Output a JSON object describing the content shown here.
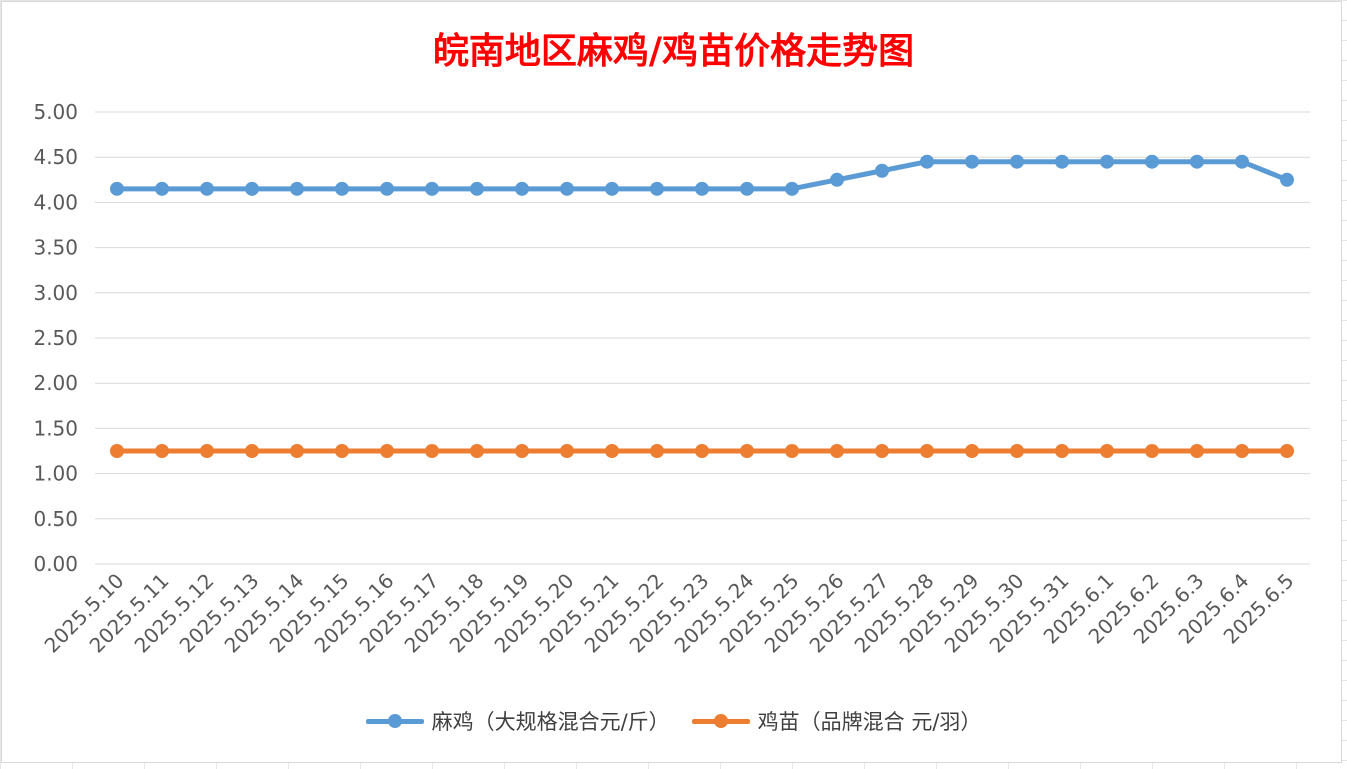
{
  "chart_data": {
    "type": "line",
    "title": "皖南地区麻鸡/鸡苗价格走势图",
    "categories": [
      "2025.5.10",
      "2025.5.11",
      "2025.5.12",
      "2025.5.13",
      "2025.5.14",
      "2025.5.15",
      "2025.5.16",
      "2025.5.17",
      "2025.5.18",
      "2025.5.19",
      "2025.5.20",
      "2025.5.21",
      "2025.5.22",
      "2025.5.23",
      "2025.5.24",
      "2025.5.25",
      "2025.5.26",
      "2025.5.27",
      "2025.5.28",
      "2025.5.29",
      "2025.5.30",
      "2025.5.31",
      "2025.6.1",
      "2025.6.2",
      "2025.6.3",
      "2025.6.4",
      "2025.6.5"
    ],
    "series": [
      {
        "name": "麻鸡（大规格混合元/斤）",
        "color": "#5b9bd5",
        "values": [
          4.15,
          4.15,
          4.15,
          4.15,
          4.15,
          4.15,
          4.15,
          4.15,
          4.15,
          4.15,
          4.15,
          4.15,
          4.15,
          4.15,
          4.15,
          4.15,
          4.25,
          4.35,
          4.45,
          4.45,
          4.45,
          4.45,
          4.45,
          4.45,
          4.45,
          4.45,
          4.25
        ]
      },
      {
        "name": "鸡苗（品牌混合 元/羽）",
        "color": "#ed7d31",
        "values": [
          1.25,
          1.25,
          1.25,
          1.25,
          1.25,
          1.25,
          1.25,
          1.25,
          1.25,
          1.25,
          1.25,
          1.25,
          1.25,
          1.25,
          1.25,
          1.25,
          1.25,
          1.25,
          1.25,
          1.25,
          1.25,
          1.25,
          1.25,
          1.25,
          1.25,
          1.25,
          1.25
        ]
      }
    ],
    "yticks": [
      "0.00",
      "0.50",
      "1.00",
      "1.50",
      "2.00",
      "2.50",
      "3.00",
      "3.50",
      "4.00",
      "4.50",
      "5.00"
    ],
    "ylim": [
      0,
      5
    ],
    "grid": true,
    "legend_position": "bottom",
    "title_color": "#ff0000"
  }
}
